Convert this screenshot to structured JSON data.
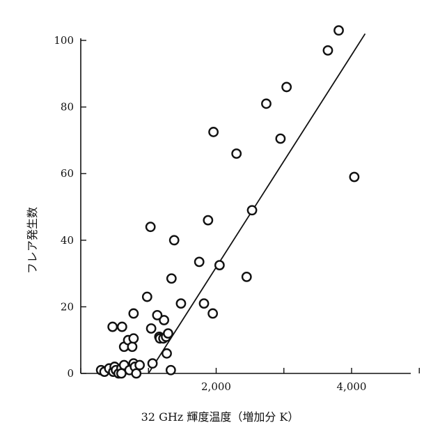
{
  "chart_data": {
    "type": "scatter",
    "xlabel": "32 GHz  輝度温度（増加分 K）",
    "ylabel": "フレア発生数",
    "xlim": [
      0,
      5000
    ],
    "ylim": [
      0,
      100
    ],
    "x_ticks": [
      0,
      1000,
      2000,
      3000,
      4000,
      5000
    ],
    "x_tick_labels": [
      "",
      "",
      "2,000",
      "",
      "4,000",
      ""
    ],
    "y_ticks": [
      0,
      20,
      40,
      60,
      80,
      100
    ],
    "y_tick_labels": [
      "0",
      "20",
      "40",
      "60",
      "80",
      "100"
    ],
    "grid": false,
    "marker": "open-circle",
    "points": [
      [
        300,
        1
      ],
      [
        350,
        0.5
      ],
      [
        420,
        1.5
      ],
      [
        480,
        0.5
      ],
      [
        500,
        2
      ],
      [
        520,
        1
      ],
      [
        560,
        0
      ],
      [
        600,
        1.5
      ],
      [
        640,
        2.5
      ],
      [
        600,
        0
      ],
      [
        720,
        1
      ],
      [
        780,
        3
      ],
      [
        800,
        2
      ],
      [
        820,
        0
      ],
      [
        870,
        2.5
      ],
      [
        1060,
        3
      ],
      [
        1330,
        1
      ],
      [
        640,
        8
      ],
      [
        700,
        10
      ],
      [
        760,
        8
      ],
      [
        780,
        10.5
      ],
      [
        470,
        14
      ],
      [
        610,
        14
      ],
      [
        780,
        18
      ],
      [
        1040,
        13.5
      ],
      [
        1160,
        11
      ],
      [
        1170,
        10.5
      ],
      [
        1220,
        10.5
      ],
      [
        1260,
        11
      ],
      [
        1290,
        12
      ],
      [
        1230,
        16
      ],
      [
        1130,
        17.5
      ],
      [
        980,
        23
      ],
      [
        1270,
        6
      ],
      [
        1030,
        44
      ],
      [
        1340,
        28.5
      ],
      [
        1380,
        40
      ],
      [
        1480,
        21
      ],
      [
        1750,
        33.5
      ],
      [
        1820,
        21
      ],
      [
        1880,
        46
      ],
      [
        1950,
        18
      ],
      [
        2050,
        32.5
      ],
      [
        1960,
        72.5
      ],
      [
        2300,
        66
      ],
      [
        2450,
        29
      ],
      [
        2530,
        49
      ],
      [
        2740,
        81
      ],
      [
        2950,
        70.5
      ],
      [
        3040,
        86
      ],
      [
        3650,
        97
      ],
      [
        3810,
        103
      ],
      [
        4040,
        59
      ]
    ],
    "trend_line": {
      "x": [
        1000,
        4200
      ],
      "y": [
        0,
        102
      ]
    }
  }
}
